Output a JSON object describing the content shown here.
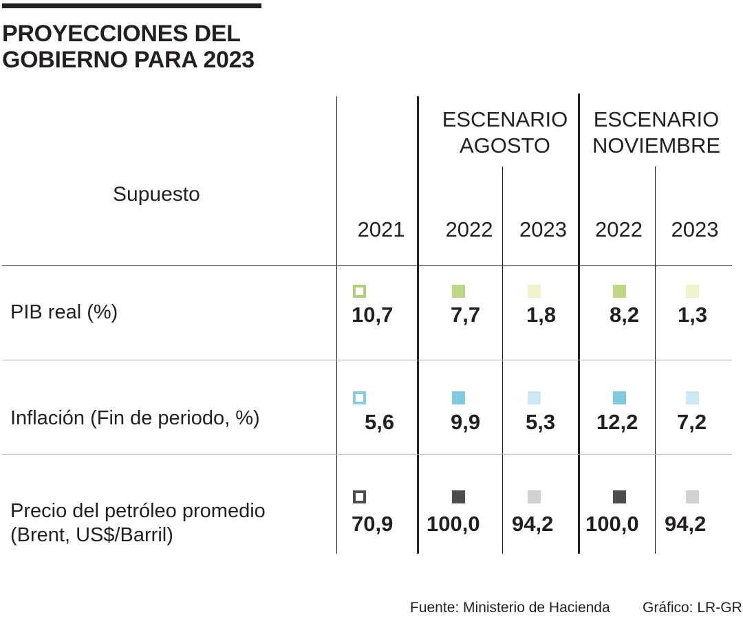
{
  "title": {
    "line1": "PROYECCIONES DEL",
    "line2": "GOBIERNO PARA 2023"
  },
  "header": {
    "supuesto": "Supuesto",
    "scenario_agosto": {
      "line1": "ESCENARIO",
      "line2": "AGOSTO"
    },
    "scenario_noviembre": {
      "line1": "ESCENARIO",
      "line2": "NOVIEMBRE"
    },
    "years": [
      "2021",
      "2022",
      "2023",
      "2022",
      "2023"
    ]
  },
  "rows": [
    {
      "label": "PIB real (%)",
      "values": [
        "10,7",
        "7,7",
        "1,8",
        "8,2",
        "1,3"
      ],
      "colors": {
        "outline": "#b3cf7a",
        "dark": "#bdd785",
        "light": "#eff2cb"
      }
    },
    {
      "label": "Inflación (Fin de periodo, %)",
      "values": [
        "5,6",
        "9,9",
        "5,3",
        "12,2",
        "7,2"
      ],
      "colors": {
        "outline": "#86cde1",
        "dark": "#80cadf",
        "light": "#cbe8f3"
      }
    },
    {
      "label_line1": "Precio del petróleo promedio",
      "label_line2": "(Brent, US$/Barril)",
      "values": [
        "70,9",
        "100,0",
        "94,2",
        "100,0",
        "94,2"
      ],
      "colors": {
        "outline": "#4d4d4f",
        "dark": "#4d4d4f",
        "light": "#d1d1d1"
      }
    }
  ],
  "footer": {
    "source": "Fuente: Ministerio de Hacienda",
    "credit": "Gráfico: LR-GR"
  }
}
